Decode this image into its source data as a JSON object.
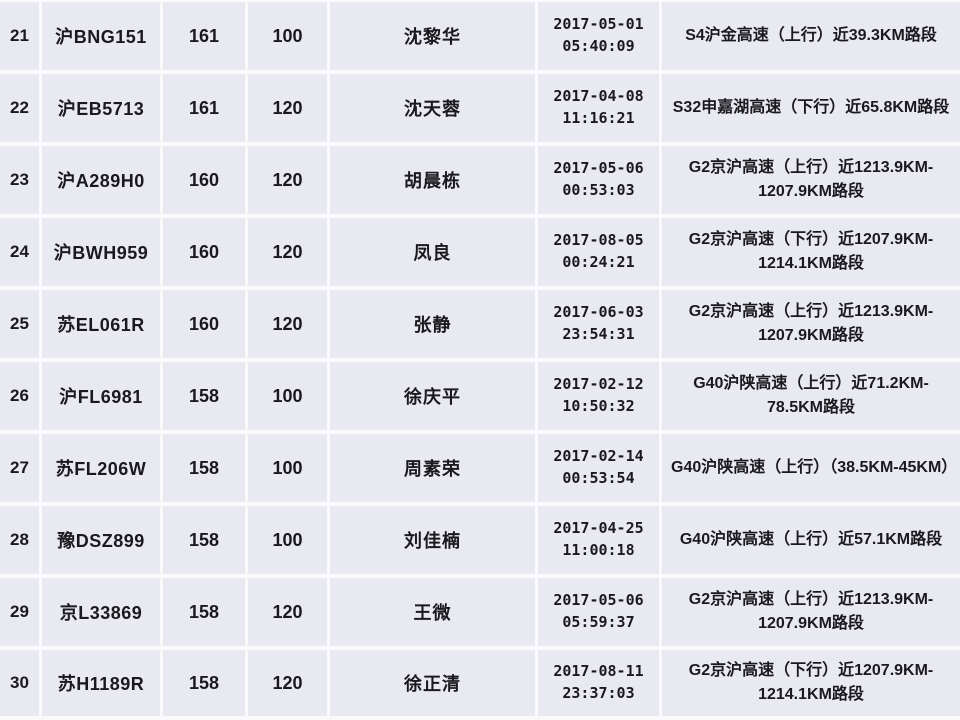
{
  "colors": {
    "cell_background": "#e9e9f1",
    "grid_line": "#fafafd",
    "text": "#1a1a1e"
  },
  "chart_data": {
    "type": "table",
    "visible_row_numbers": [
      21,
      22,
      23,
      24,
      25,
      26,
      27,
      28,
      29,
      30
    ],
    "rows": [
      {
        "no": "21",
        "plate": "沪BNG151",
        "speed": "161",
        "limit": "100",
        "driver": "沈黎华",
        "date": "2017-05-01",
        "time": "05:40:09",
        "location": "S4沪金高速（上行）近39.3KM路段"
      },
      {
        "no": "22",
        "plate": "沪EB5713",
        "speed": "161",
        "limit": "120",
        "driver": "沈天蓉",
        "date": "2017-04-08",
        "time": "11:16:21",
        "location": "S32申嘉湖高速（下行）近65.8KM路段"
      },
      {
        "no": "23",
        "plate": "沪A289H0",
        "speed": "160",
        "limit": "120",
        "driver": "胡晨栋",
        "date": "2017-05-06",
        "time": "00:53:03",
        "location": "G2京沪高速（上行）近1213.9KM-1207.9KM路段"
      },
      {
        "no": "24",
        "plate": "沪BWH959",
        "speed": "160",
        "limit": "120",
        "driver": "凤良",
        "date": "2017-08-05",
        "time": "00:24:21",
        "location": "G2京沪高速（下行）近1207.9KM-1214.1KM路段"
      },
      {
        "no": "25",
        "plate": "苏EL061R",
        "speed": "160",
        "limit": "120",
        "driver": "张静",
        "date": "2017-06-03",
        "time": "23:54:31",
        "location": "G2京沪高速（上行）近1213.9KM-1207.9KM路段"
      },
      {
        "no": "26",
        "plate": "沪FL6981",
        "speed": "158",
        "limit": "100",
        "driver": "徐庆平",
        "date": "2017-02-12",
        "time": "10:50:32",
        "location": "G40沪陕高速（上行）近71.2KM-78.5KM路段"
      },
      {
        "no": "27",
        "plate": "苏FL206W",
        "speed": "158",
        "limit": "100",
        "driver": "周素荣",
        "date": "2017-02-14",
        "time": "00:53:54",
        "location": "G40沪陕高速（上行）（38.5KM-45KM）"
      },
      {
        "no": "28",
        "plate": "豫DSZ899",
        "speed": "158",
        "limit": "100",
        "driver": "刘佳楠",
        "date": "2017-04-25",
        "time": "11:00:18",
        "location": "G40沪陕高速（上行）近57.1KM路段"
      },
      {
        "no": "29",
        "plate": "京L33869",
        "speed": "158",
        "limit": "120",
        "driver": "王微",
        "date": "2017-05-06",
        "time": "05:59:37",
        "location": "G2京沪高速（上行）近1213.9KM-1207.9KM路段"
      },
      {
        "no": "30",
        "plate": "苏H1189R",
        "speed": "158",
        "limit": "120",
        "driver": "徐正清",
        "date": "2017-08-11",
        "time": "23:37:03",
        "location": "G2京沪高速（下行）近1207.9KM-1214.1KM路段"
      }
    ]
  }
}
